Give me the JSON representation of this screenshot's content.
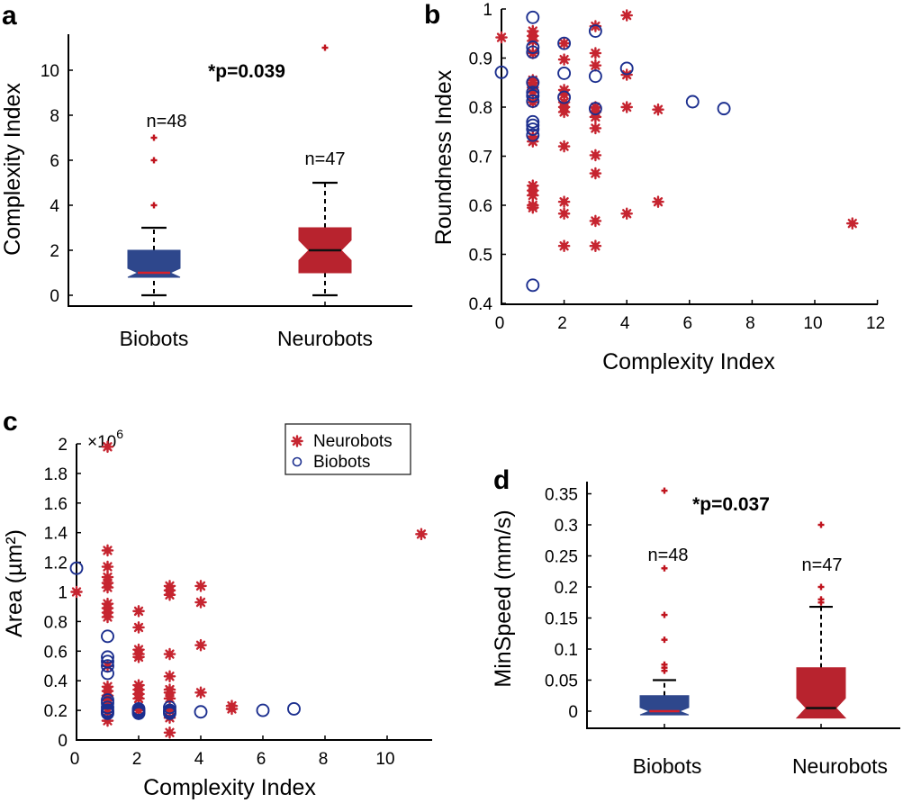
{
  "colors": {
    "biobots": "#2e478c",
    "neurobots": "#b8232e",
    "median_biobots": "#d8202a",
    "median_neurobots": "#111111",
    "outlier": "#c0141e",
    "scatter_neurobots": "#c62530",
    "scatter_biobots": "#1c2f8f"
  },
  "chart_data": [
    {
      "panel": "a",
      "type": "box",
      "title": "",
      "ylabel": "Complexity Index",
      "xlabel": "",
      "ylim": [
        0,
        11.5
      ],
      "yticks": [
        "0",
        "2",
        "4",
        "6",
        "8",
        "10"
      ],
      "ytick_values": [
        0,
        2,
        4,
        6,
        8,
        10
      ],
      "categories": [
        "Biobots",
        "Neurobots"
      ],
      "annotation": "*p=0.039",
      "boxes": [
        {
          "name": "Biobots",
          "n_label": "n=48",
          "whisker_low": 0,
          "q1": 1,
          "median": 1,
          "q3": 2,
          "whisker_high": 3,
          "notch_low": 0.8,
          "notch_high": 1.2,
          "outliers": [
            4,
            6,
            7
          ]
        },
        {
          "name": "Neurobots",
          "n_label": "n=47",
          "whisker_low": 0,
          "q1": 1,
          "median": 2,
          "q3": 3,
          "whisker_high": 5,
          "notch_low": 1.55,
          "notch_high": 2.45,
          "outliers": [
            11
          ]
        }
      ]
    },
    {
      "panel": "b",
      "type": "scatter",
      "title": "",
      "xlabel": "Complexity Index",
      "ylabel": "Roundness Index",
      "xlim": [
        0,
        12.5
      ],
      "ylim": [
        0.385,
        1.0
      ],
      "xticks": [
        "0",
        "2",
        "4",
        "6",
        "8",
        "10",
        "12"
      ],
      "xtick_values": [
        0,
        2,
        4,
        6,
        8,
        10,
        12
      ],
      "yticks": [
        "0.4",
        "0.5",
        "0.6",
        "0.7",
        "0.8",
        "0.9",
        "1"
      ],
      "ytick_values": [
        0.4,
        0.5,
        0.6,
        0.7,
        0.8,
        0.9,
        1.0
      ],
      "series": [
        {
          "name": "Neurobots",
          "marker": "asterisk",
          "points": [
            [
              0,
              0.942
            ],
            [
              1,
              0.955
            ],
            [
              1,
              0.945
            ],
            [
              1,
              0.935
            ],
            [
              1,
              0.91
            ],
            [
              1,
              0.855
            ],
            [
              1,
              0.85
            ],
            [
              1,
              0.84
            ],
            [
              1,
              0.83
            ],
            [
              1,
              0.81
            ],
            [
              1,
              0.74
            ],
            [
              1,
              0.73
            ],
            [
              1,
              0.64
            ],
            [
              1,
              0.63
            ],
            [
              1,
              0.62
            ],
            [
              1,
              0.6
            ],
            [
              1,
              0.595
            ],
            [
              2,
              0.93
            ],
            [
              2,
              0.897
            ],
            [
              2,
              0.835
            ],
            [
              2,
              0.825
            ],
            [
              2,
              0.81
            ],
            [
              2,
              0.8
            ],
            [
              2,
              0.79
            ],
            [
              2,
              0.72
            ],
            [
              2,
              0.607
            ],
            [
              2,
              0.583
            ],
            [
              2,
              0.517
            ],
            [
              3,
              0.965
            ],
            [
              3,
              0.91
            ],
            [
              3,
              0.885
            ],
            [
              3,
              0.8
            ],
            [
              3,
              0.79
            ],
            [
              3,
              0.78
            ],
            [
              3,
              0.757
            ],
            [
              3,
              0.702
            ],
            [
              3,
              0.665
            ],
            [
              3,
              0.568
            ],
            [
              3,
              0.517
            ],
            [
              4,
              0.987
            ],
            [
              4,
              0.866
            ],
            [
              4,
              0.8
            ],
            [
              4,
              0.583
            ],
            [
              5,
              0.795
            ],
            [
              5,
              0.607
            ],
            [
              11.2,
              0.563
            ]
          ]
        },
        {
          "name": "Biobots",
          "marker": "circle",
          "points": [
            [
              0,
              0.871
            ],
            [
              1,
              0.983
            ],
            [
              1,
              0.922
            ],
            [
              1,
              0.912
            ],
            [
              1,
              0.85
            ],
            [
              1,
              0.83
            ],
            [
              1,
              0.823
            ],
            [
              1,
              0.812
            ],
            [
              1,
              0.77
            ],
            [
              1,
              0.763
            ],
            [
              1,
              0.755
            ],
            [
              1,
              0.743
            ],
            [
              1,
              0.437
            ],
            [
              2,
              0.93
            ],
            [
              2,
              0.869
            ],
            [
              2,
              0.82
            ],
            [
              3,
              0.955
            ],
            [
              3,
              0.863
            ],
            [
              3,
              0.797
            ],
            [
              4,
              0.879
            ],
            [
              6.1,
              0.811
            ],
            [
              7.1,
              0.797
            ]
          ]
        }
      ]
    },
    {
      "panel": "c",
      "type": "scatter",
      "title": "",
      "xlabel": "Complexity Index",
      "ylabel": "Area (µm²)",
      "y_multiplier": "×10",
      "y_multiplier_exp": "6",
      "xlim": [
        0,
        11.4
      ],
      "ylim": [
        0,
        2.05
      ],
      "xticks": [
        "0",
        "2",
        "4",
        "6",
        "8",
        "10",
        "12"
      ],
      "xtick_values": [
        0,
        2,
        4,
        6,
        8,
        10,
        12
      ],
      "yticks": [
        "0",
        "0.2",
        "0.4",
        "0.6",
        "0.8",
        "1",
        "1.2",
        "1.4",
        "1.6",
        "1.8",
        "2"
      ],
      "ytick_values": [
        0,
        0.2,
        0.4,
        0.6,
        0.8,
        1.0,
        1.2,
        1.4,
        1.6,
        1.8,
        2.0
      ],
      "legend": {
        "position": "top-right",
        "entries": [
          "Neurobots",
          "Biobots"
        ]
      },
      "series": [
        {
          "name": "Neurobots",
          "marker": "asterisk",
          "points": [
            [
              0,
              1.0
            ],
            [
              1,
              1.98
            ],
            [
              1,
              1.28
            ],
            [
              1,
              1.17
            ],
            [
              1,
              1.1
            ],
            [
              1,
              1.06
            ],
            [
              1,
              1.03
            ],
            [
              1,
              0.92
            ],
            [
              1,
              0.89
            ],
            [
              1,
              0.86
            ],
            [
              1,
              0.83
            ],
            [
              1,
              0.5
            ],
            [
              1,
              0.36
            ],
            [
              1,
              0.33
            ],
            [
              1,
              0.3
            ],
            [
              1,
              0.27
            ],
            [
              1,
              0.24
            ],
            [
              1,
              0.19
            ],
            [
              1,
              0.13
            ],
            [
              2,
              0.87
            ],
            [
              2,
              0.76
            ],
            [
              2,
              0.61
            ],
            [
              2,
              0.58
            ],
            [
              2,
              0.56
            ],
            [
              2,
              0.37
            ],
            [
              2,
              0.34
            ],
            [
              2,
              0.31
            ],
            [
              2,
              0.28
            ],
            [
              2,
              0.2
            ],
            [
              3,
              1.04
            ],
            [
              3,
              1.01
            ],
            [
              3,
              0.98
            ],
            [
              3,
              0.58
            ],
            [
              3,
              0.43
            ],
            [
              3,
              0.34
            ],
            [
              3,
              0.32
            ],
            [
              3,
              0.28
            ],
            [
              3,
              0.2
            ],
            [
              3,
              0.15
            ],
            [
              3,
              0.05
            ],
            [
              4,
              1.04
            ],
            [
              4,
              0.93
            ],
            [
              4,
              0.64
            ],
            [
              4,
              0.32
            ],
            [
              5,
              0.23
            ],
            [
              5,
              0.21
            ],
            [
              11.1,
              1.39
            ]
          ]
        },
        {
          "name": "Biobots",
          "marker": "circle",
          "points": [
            [
              0,
              1.16
            ],
            [
              1,
              0.7
            ],
            [
              1,
              0.56
            ],
            [
              1,
              0.53
            ],
            [
              1,
              0.5
            ],
            [
              1,
              0.45
            ],
            [
              1,
              0.27
            ],
            [
              1,
              0.25
            ],
            [
              1,
              0.22
            ],
            [
              1,
              0.2
            ],
            [
              1,
              0.19
            ],
            [
              1,
              0.18
            ],
            [
              2,
              0.21
            ],
            [
              2,
              0.2
            ],
            [
              2,
              0.19
            ],
            [
              2,
              0.18
            ],
            [
              3,
              0.22
            ],
            [
              3,
              0.2
            ],
            [
              3,
              0.19
            ],
            [
              3,
              0.18
            ],
            [
              4,
              0.19
            ],
            [
              6,
              0.2
            ],
            [
              7,
              0.21
            ]
          ]
        }
      ]
    },
    {
      "panel": "d",
      "type": "box",
      "title": "",
      "ylabel": "MinSpeed (mm/s)",
      "xlabel": "",
      "ylim": [
        -0.027,
        0.375
      ],
      "yticks": [
        "0",
        "0.05",
        "0.1",
        "0.15",
        "0.2",
        "0.25",
        "0.3",
        "0.35"
      ],
      "ytick_values": [
        0,
        0.05,
        0.1,
        0.15,
        0.2,
        0.25,
        0.3,
        0.35
      ],
      "categories": [
        "Biobots",
        "Neurobots"
      ],
      "annotation": "*p=0.037",
      "boxes": [
        {
          "name": "Biobots",
          "n_label": "n=48",
          "whisker_low": 0,
          "q1": 0,
          "median": 0,
          "q3": 0.025,
          "whisker_high": 0.05,
          "notch_low": -0.006,
          "notch_high": 0.006,
          "outliers": [
            0.065,
            0.07,
            0.075,
            0.115,
            0.155,
            0.23,
            0.355
          ]
        },
        {
          "name": "Neurobots",
          "n_label": "n=47",
          "whisker_low": 0,
          "q1": 0,
          "median": 0.005,
          "q3": 0.07,
          "whisker_high": 0.168,
          "notch_low": -0.011,
          "notch_high": 0.021,
          "outliers": [
            0.175,
            0.18,
            0.2,
            0.3
          ]
        }
      ]
    }
  ],
  "panels": {
    "a": {
      "letter": "a"
    },
    "b": {
      "letter": "b"
    },
    "c": {
      "letter": "c"
    },
    "d": {
      "letter": "d"
    }
  }
}
